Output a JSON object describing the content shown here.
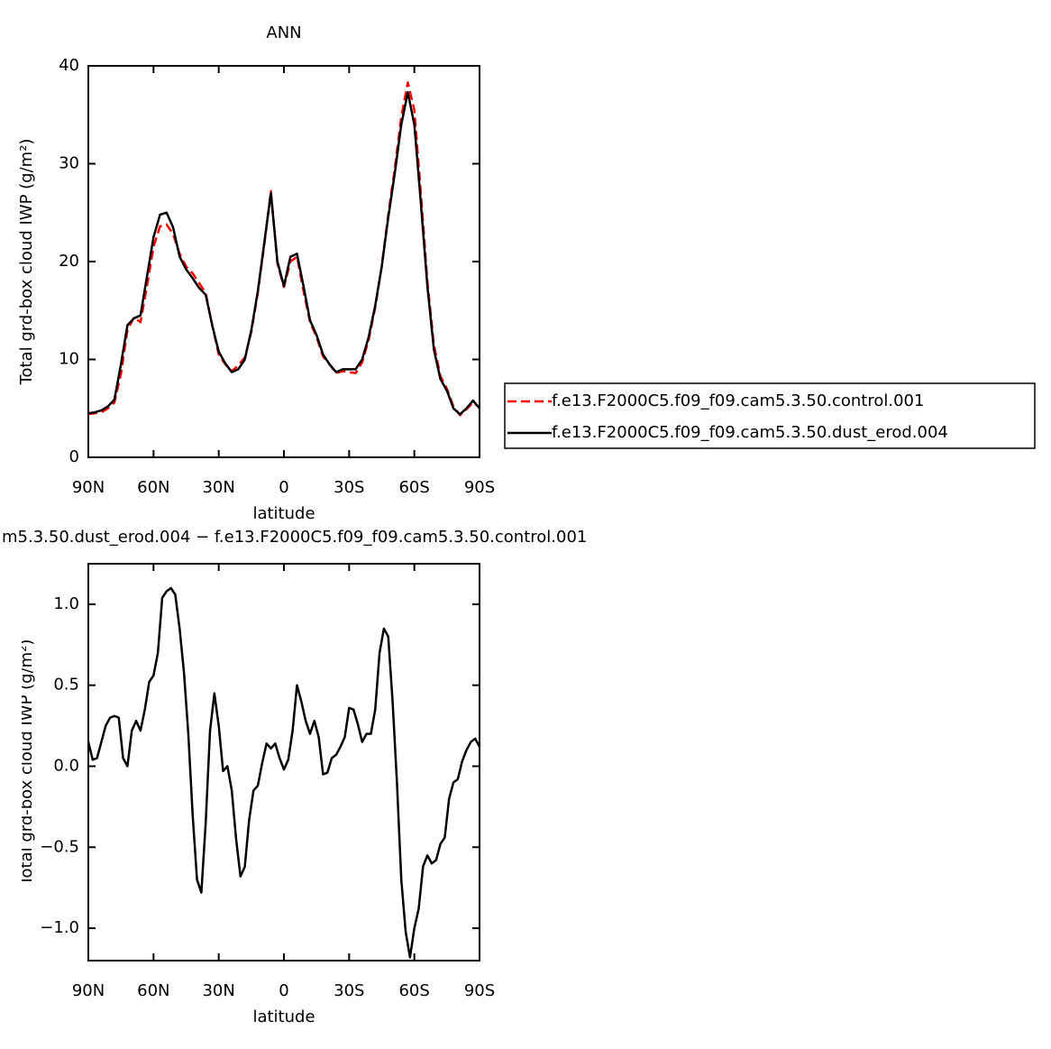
{
  "chart_data": [
    {
      "type": "line",
      "title": "ANN",
      "x_label": "latitude",
      "y_label": "Total grd-box cloud IWP (g/m²)",
      "x": [
        90,
        87,
        84,
        81,
        78,
        75,
        72,
        69,
        66,
        63,
        60,
        57,
        54,
        51,
        48,
        45,
        42,
        39,
        36,
        33,
        30,
        27,
        24,
        21,
        18,
        15,
        12,
        9,
        6,
        3,
        0,
        -3,
        -6,
        -9,
        -12,
        -15,
        -18,
        -21,
        -24,
        -27,
        -30,
        -33,
        -36,
        -39,
        -42,
        -45,
        -48,
        -51,
        -54,
        -57,
        -60,
        -63,
        -66,
        -69,
        -72,
        -75,
        -78,
        -81,
        -84,
        -87,
        -90
      ],
      "xlim": [
        90,
        -90
      ],
      "xticks": [
        {
          "value": 90,
          "label": "90N"
        },
        {
          "value": 60,
          "label": "60N"
        },
        {
          "value": 30,
          "label": "30N"
        },
        0,
        {
          "value": -30,
          "label": "30S"
        },
        {
          "value": -60,
          "label": "60S"
        },
        {
          "value": -90,
          "label": "90S"
        }
      ],
      "ylim": [
        0,
        40
      ],
      "yticks": [
        0,
        10,
        20,
        30,
        40
      ],
      "legend": "right",
      "series": [
        {
          "name": "f.e13.F2000C5.f09_f09.cam5.3.50.control.001",
          "color": "#ff0000",
          "dash": "dashed",
          "values": [
            4.4,
            4.5,
            4.6,
            5.0,
            5.6,
            8.5,
            13.0,
            14.3,
            13.8,
            17.5,
            21.5,
            23.6,
            23.8,
            22.8,
            20.8,
            19.5,
            18.8,
            17.8,
            16.8,
            13.5,
            10.5,
            9.5,
            8.8,
            9.4,
            10.2,
            12.8,
            16.8,
            21.8,
            27.2,
            19.8,
            17.4,
            20.0,
            20.5,
            17.0,
            13.8,
            12.3,
            10.3,
            9.5,
            8.6,
            8.8,
            8.7,
            8.6,
            9.7,
            12.0,
            15.3,
            19.5,
            24.8,
            29.5,
            34.8,
            38.3,
            35.5,
            27.0,
            18.0,
            11.5,
            8.3,
            7.0,
            5.2,
            4.3,
            4.9,
            5.6,
            5.1
          ]
        },
        {
          "name": "f.e13.F2000C5.f09_f09.cam5.3.50.dust_erod.004",
          "color": "#000000",
          "dash": "solid",
          "values": [
            4.5,
            4.6,
            4.8,
            5.2,
            5.9,
            9.5,
            13.5,
            14.2,
            14.5,
            18.5,
            22.5,
            24.8,
            25.0,
            23.5,
            20.5,
            19.2,
            18.3,
            17.3,
            16.6,
            13.5,
            10.8,
            9.6,
            8.7,
            9.0,
            10.0,
            13.0,
            17.0,
            22.0,
            27.0,
            20.0,
            17.5,
            20.5,
            20.8,
            17.5,
            14.0,
            12.5,
            10.5,
            9.5,
            8.7,
            9.0,
            9.0,
            9.0,
            10.0,
            12.3,
            15.5,
            19.5,
            24.5,
            29.0,
            34.0,
            37.3,
            34.0,
            26.0,
            17.5,
            11.0,
            8.0,
            6.8,
            5.0,
            4.4,
            5.0,
            5.8,
            5.0
          ]
        }
      ]
    },
    {
      "type": "line",
      "title": "m5.3.50.dust_erod.004 − f.e13.F2000C5.f09_f09.cam5.3.50.control.001",
      "x_label": "latitude",
      "y_label": "Total grd-box cloud IWP (g/m²)",
      "x": [
        90,
        88,
        86,
        84,
        82,
        80,
        78,
        76,
        74,
        72,
        70,
        68,
        66,
        64,
        62,
        60,
        58,
        56,
        54,
        52,
        50,
        48,
        46,
        44,
        42,
        40,
        38,
        36,
        34,
        32,
        30,
        28,
        26,
        24,
        22,
        20,
        18,
        16,
        14,
        12,
        10,
        8,
        6,
        4,
        2,
        0,
        -2,
        -4,
        -6,
        -8,
        -10,
        -12,
        -14,
        -16,
        -18,
        -20,
        -22,
        -24,
        -26,
        -28,
        -30,
        -32,
        -34,
        -36,
        -38,
        -40,
        -42,
        -44,
        -46,
        -48,
        -50,
        -52,
        -54,
        -56,
        -58,
        -60,
        -62,
        -64,
        -66,
        -68,
        -70,
        -72,
        -74,
        -76,
        -78,
        -80,
        -82,
        -84,
        -86,
        -88,
        -90
      ],
      "values": [
        0.15,
        0.04,
        0.05,
        0.15,
        0.25,
        0.3,
        0.31,
        0.3,
        0.05,
        0.0,
        0.22,
        0.28,
        0.22,
        0.35,
        0.52,
        0.56,
        0.7,
        1.04,
        1.08,
        1.1,
        1.06,
        0.85,
        0.58,
        0.2,
        -0.3,
        -0.7,
        -0.78,
        -0.35,
        0.22,
        0.45,
        0.25,
        -0.03,
        0.0,
        -0.15,
        -0.45,
        -0.68,
        -0.62,
        -0.33,
        -0.15,
        -0.12,
        0.02,
        0.14,
        0.11,
        0.14,
        0.05,
        -0.02,
        0.04,
        0.22,
        0.5,
        0.4,
        0.28,
        0.2,
        0.28,
        0.18,
        -0.05,
        -0.04,
        0.05,
        0.07,
        0.12,
        0.18,
        0.36,
        0.35,
        0.26,
        0.15,
        0.2,
        0.2,
        0.35,
        0.7,
        0.85,
        0.8,
        0.4,
        -0.1,
        -0.7,
        -1.02,
        -1.18,
        -1.0,
        -0.88,
        -0.62,
        -0.55,
        -0.6,
        -0.58,
        -0.48,
        -0.44,
        -0.2,
        -0.1,
        -0.08,
        0.03,
        0.1,
        0.15,
        0.17,
        0.12
      ],
      "color": "#000000",
      "xlim": [
        90,
        -90
      ],
      "xticks": [
        {
          "value": 90,
          "label": "90N"
        },
        {
          "value": 60,
          "label": "60N"
        },
        {
          "value": 30,
          "label": "30N"
        },
        0,
        {
          "value": -30,
          "label": "30S"
        },
        {
          "value": -60,
          "label": "60S"
        },
        {
          "value": -90,
          "label": "90S"
        }
      ],
      "ylim": [
        -1.2,
        1.25
      ],
      "yticks": [
        {
          "value": -1,
          "label": "−1.0"
        },
        {
          "value": -0.5,
          "label": "−0.5"
        },
        {
          "value": 0,
          "label": "0.0"
        },
        0.5,
        {
          "value": 1,
          "label": "1.0"
        }
      ]
    }
  ]
}
